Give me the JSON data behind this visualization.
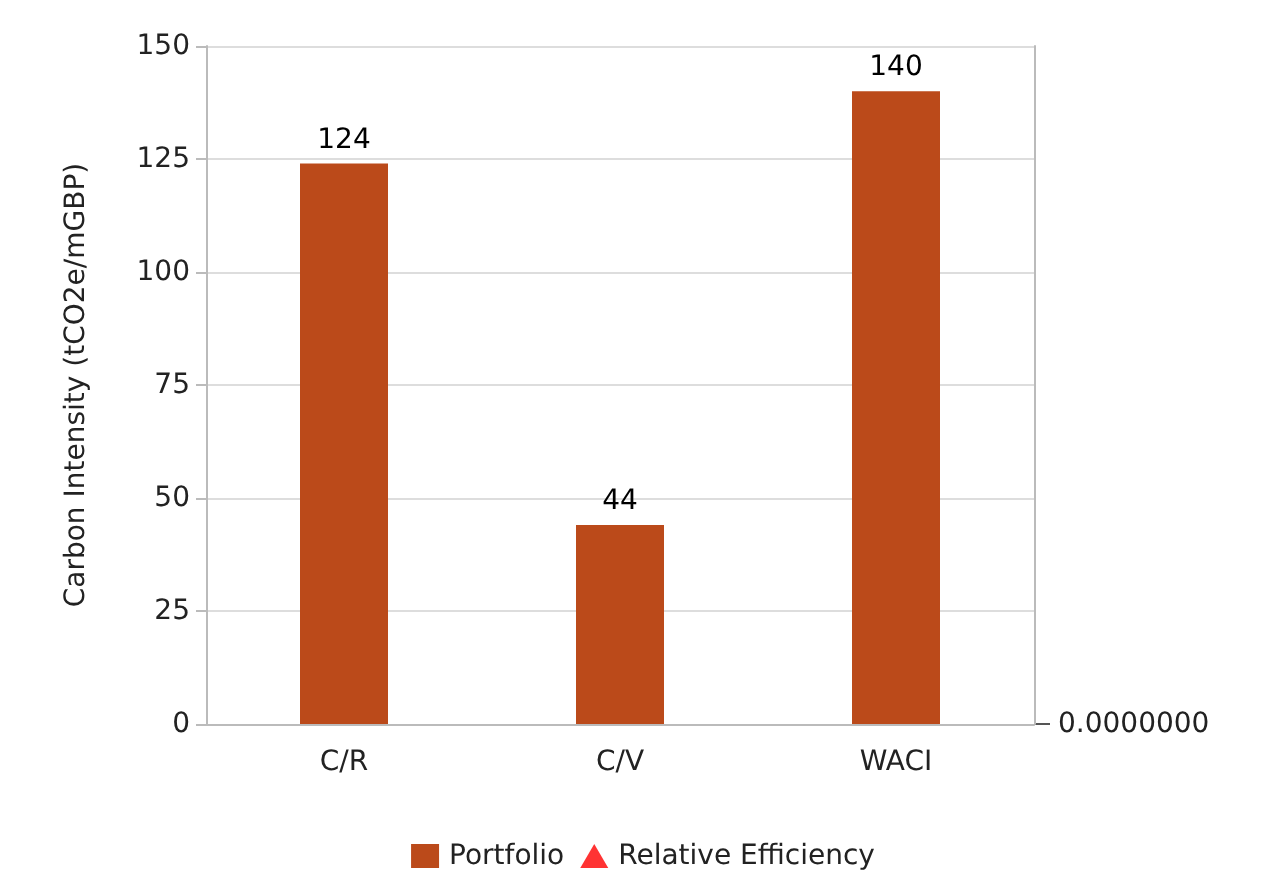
{
  "chart_data": {
    "type": "bar",
    "ylabel": "Carbon Intensity (tCO2e/mGBP)",
    "categories": [
      "C/R",
      "C/V",
      "WACI"
    ],
    "series": [
      {
        "name": "Portfolio",
        "color": "#bb4a1a",
        "values": [
          124,
          44,
          140
        ]
      },
      {
        "name": "Relative Efficiency",
        "type": "scatter",
        "color": "#ff0000",
        "marker": "triangle",
        "values": [
          null,
          null,
          null
        ]
      }
    ],
    "ylim": [
      0,
      150
    ],
    "yticks": [
      0,
      25,
      50,
      75,
      100,
      125,
      150
    ],
    "annotations": [
      "0.0000000"
    ],
    "grid": "y",
    "legend": "bottom",
    "data_labels": true
  }
}
